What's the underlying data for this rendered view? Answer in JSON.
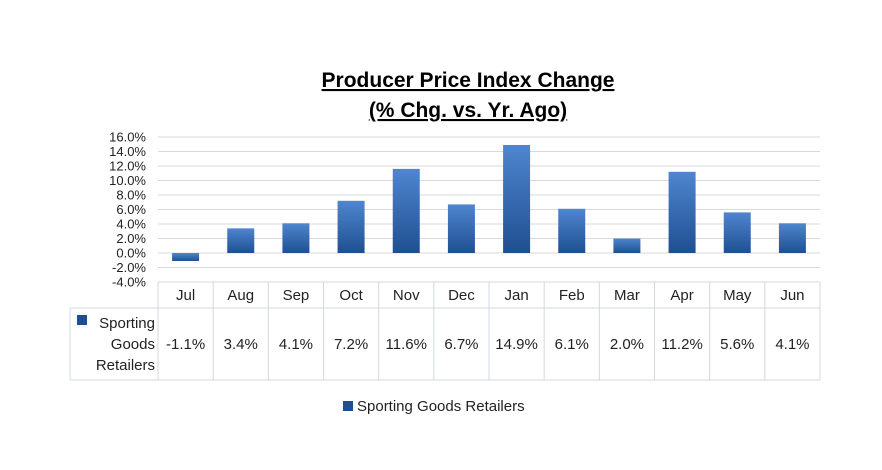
{
  "chart_data": {
    "type": "bar",
    "title": "Producer Price Index Change",
    "subtitle": "(% Chg. vs. Yr. Ago)",
    "categories": [
      "Jul",
      "Aug",
      "Sep",
      "Oct",
      "Nov",
      "Dec",
      "Jan",
      "Feb",
      "Mar",
      "Apr",
      "May",
      "Jun"
    ],
    "series": [
      {
        "name": "Sporting Goods Retailers",
        "values": [
          -1.1,
          3.4,
          4.1,
          7.2,
          11.6,
          6.7,
          14.9,
          6.1,
          2.0,
          11.2,
          5.6,
          4.1
        ],
        "value_labels": [
          "-1.1%",
          "3.4%",
          "4.1%",
          "7.2%",
          "11.6%",
          "6.7%",
          "14.9%",
          "6.1%",
          "2.0%",
          "11.2%",
          "5.6%",
          "4.1%"
        ],
        "row_label_lines": [
          "Sporting",
          "Goods",
          "Retailers"
        ]
      }
    ],
    "ylim": [
      -4,
      16
    ],
    "yticks": [
      16,
      14,
      12,
      10,
      8,
      6,
      4,
      2,
      0,
      -2,
      -4
    ],
    "ytick_labels": [
      "16.0%",
      "14.0%",
      "12.0%",
      "10.0%",
      "8.0%",
      "6.0%",
      "4.0%",
      "2.0%",
      "0.0%",
      "-2.0%",
      "-4.0%"
    ],
    "grid": true,
    "data_table": true,
    "legend_position": "bottom",
    "colors": {
      "bar_top": "#4f86cf",
      "bar_bottom": "#1f4f91",
      "grid": "#d9d9d9",
      "table_border": "#d0d8e4"
    }
  }
}
